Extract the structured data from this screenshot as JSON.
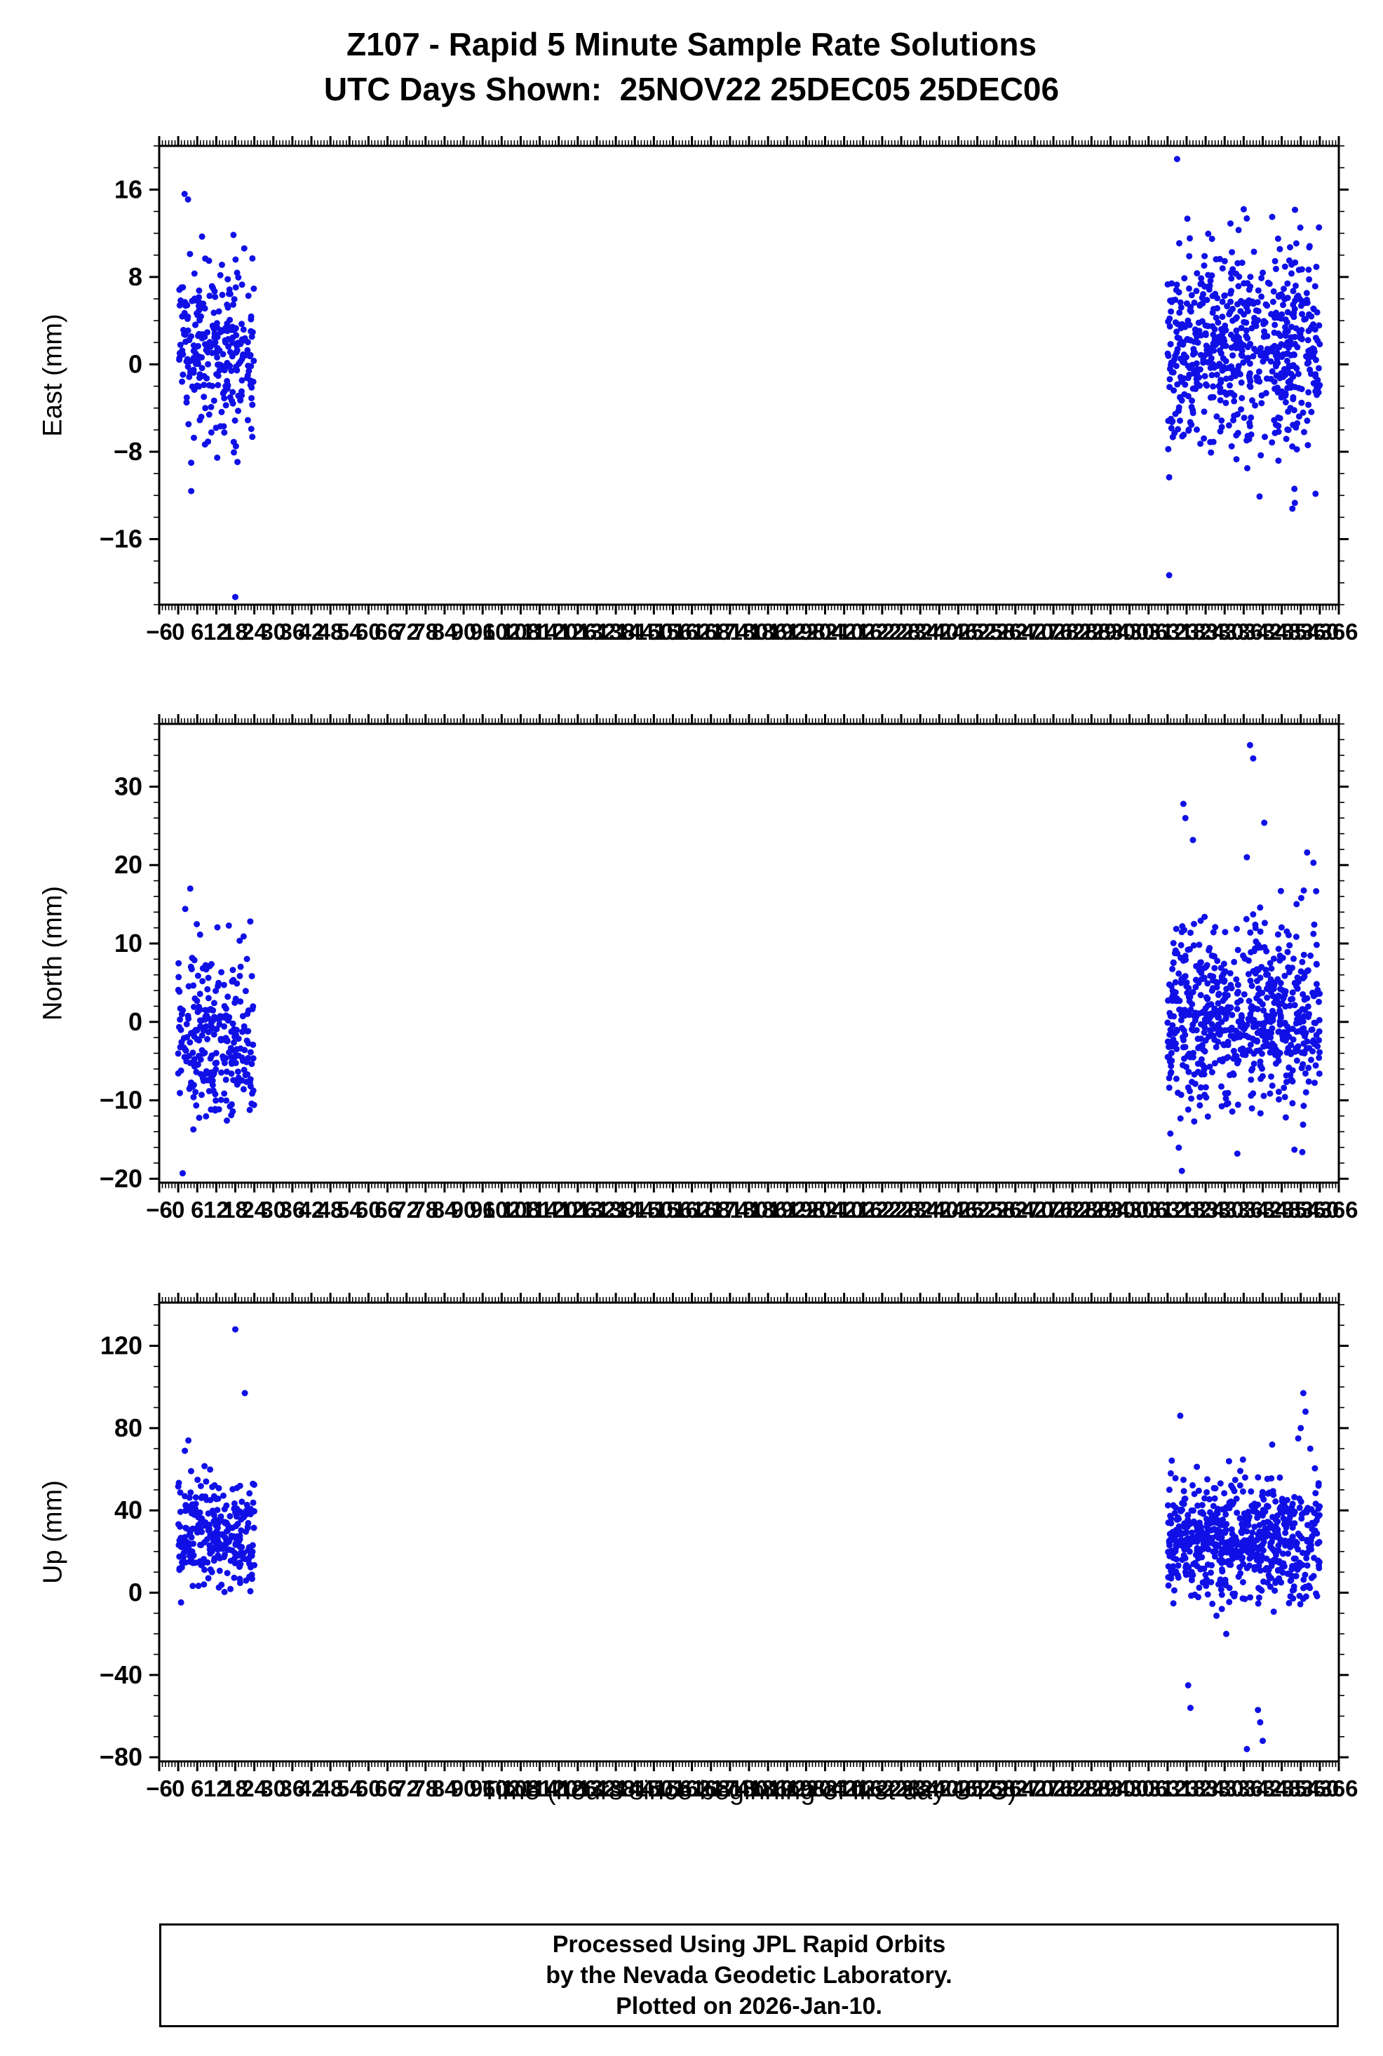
{
  "page": {
    "title_line1": "Z107 - Rapid 5 Minute Sample Rate Solutions",
    "title_line2": "UTC Days Shown:  25NOV22 25DEC05 25DEC06",
    "footer": {
      "line1": "Processed Using JPL Rapid Orbits",
      "line2": "by the Nevada Geodetic Laboratory.",
      "line3": "Plotted on 2026-Jan-10."
    }
  },
  "chart_data": {
    "type": "scatter",
    "title": "Z107 - Rapid 5 Minute Sample Rate Solutions",
    "subtitle": "UTC Days Shown:  25NOV22 25DEC05 25DEC06",
    "description": "GPS station position scatter plots (East/North/Up) for three UTC days: 25NOV22 (hours 0-24) and 25DEC05-25DEC06 (hours 312-360).",
    "point_color": "#1010e6",
    "point_radius": 4.5,
    "frame_color": "#000000",
    "x": {
      "label": "Time (hours since beginning of first day UTC)",
      "lim": [
        -6,
        366
      ],
      "major_tick": 6,
      "minor_tick": 1
    },
    "panels": [
      {
        "ylabel": "East (mm)",
        "ylim": [
          -22,
          20
        ],
        "y_major": 8,
        "y_minor": 2,
        "clusters": [
          {
            "n": 270,
            "x0": 0,
            "x1": 24,
            "mean": 1.6,
            "sd": 4.3,
            "ymin": -12,
            "ymax": 16,
            "seed": 101
          },
          {
            "n": 650,
            "x0": 312,
            "x1": 360,
            "mean": 1.3,
            "sd": 4.7,
            "ymin": -13.5,
            "ymax": 14.5,
            "seed": 102
          }
        ],
        "outliers": [
          [
            18,
            -21.3
          ],
          [
            4.1,
            -11.6
          ],
          [
            2.0,
            15.6
          ],
          [
            3.1,
            15.1
          ],
          [
            315,
            18.8
          ],
          [
            312.5,
            -19.3
          ],
          [
            336,
            14.2
          ],
          [
            345,
            13.5
          ],
          [
            352,
            -11.4
          ],
          [
            341,
            -12.1
          ]
        ]
      },
      {
        "ylabel": "North (mm)",
        "ylim": [
          -20.5,
          38
        ],
        "y_major": 10,
        "y_minor": 2,
        "clusters": [
          {
            "n": 270,
            "x0": 0,
            "x1": 24,
            "mean": -2.2,
            "sd": 5.6,
            "ymin": -19.5,
            "ymax": 15,
            "seed": 201
          },
          {
            "n": 650,
            "x0": 312,
            "x1": 360,
            "mean": 0.8,
            "sd": 5.8,
            "ymin": -16.5,
            "ymax": 18,
            "seed": 202
          }
        ],
        "outliers": [
          [
            1.4,
            -19.3
          ],
          [
            2.2,
            14.4
          ],
          [
            3.8,
            17.0
          ],
          [
            316.5,
            -19.0
          ],
          [
            317,
            27.8
          ],
          [
            317.6,
            26.0
          ],
          [
            320,
            23.2
          ],
          [
            338,
            35.3
          ],
          [
            339,
            33.6
          ],
          [
            342.5,
            25.4
          ],
          [
            337,
            21.0
          ],
          [
            356,
            21.6
          ],
          [
            358,
            20.3
          ],
          [
            334,
            -16.8
          ],
          [
            352,
            -16.3
          ],
          [
            354.5,
            -16.6
          ]
        ]
      },
      {
        "ylabel": "Up (mm)",
        "ylim": [
          -82,
          141
        ],
        "y_major": 40,
        "y_minor": 10,
        "clusters": [
          {
            "n": 270,
            "x0": 0,
            "x1": 24,
            "mean": 30,
            "sd": 13,
            "ymin": -12,
            "ymax": 62,
            "seed": 301
          },
          {
            "n": 650,
            "x0": 312,
            "x1": 360,
            "mean": 26,
            "sd": 15,
            "ymin": -32,
            "ymax": 66,
            "seed": 302
          }
        ],
        "outliers": [
          [
            18,
            128
          ],
          [
            21,
            97
          ],
          [
            3.2,
            74
          ],
          [
            2.1,
            69
          ],
          [
            313,
            58
          ],
          [
            316,
            86
          ],
          [
            318.5,
            -45
          ],
          [
            319.2,
            -56
          ],
          [
            340.5,
            -57
          ],
          [
            341.2,
            -63
          ],
          [
            342,
            -72
          ],
          [
            337,
            -76
          ],
          [
            354.8,
            97
          ],
          [
            355.5,
            88
          ],
          [
            354,
            80
          ],
          [
            353.2,
            75
          ],
          [
            357,
            70
          ],
          [
            345,
            72
          ]
        ]
      }
    ]
  }
}
